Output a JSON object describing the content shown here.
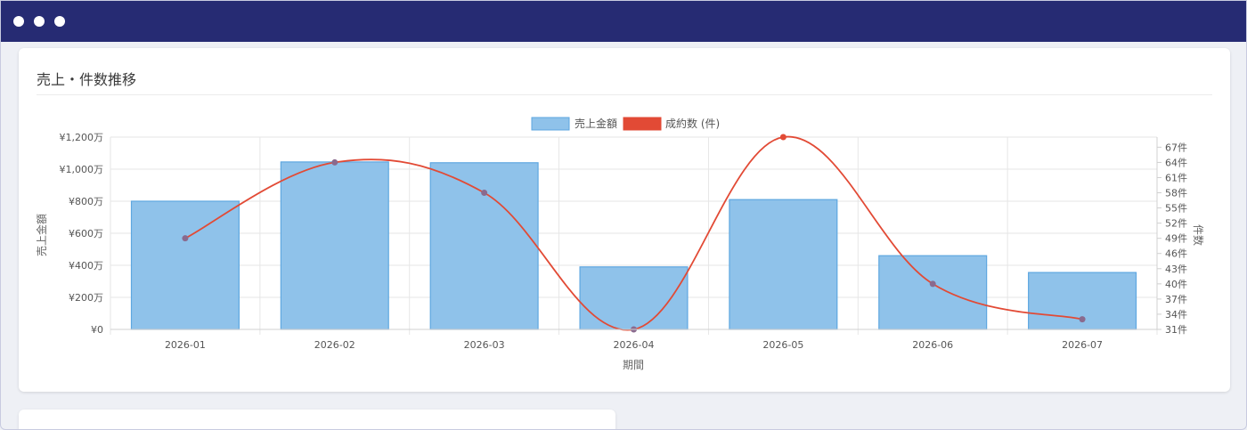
{
  "window": {
    "controls": [
      "dot",
      "dot",
      "dot"
    ]
  },
  "card": {
    "title": "売上・件数推移"
  },
  "colors": {
    "titlebar": "#262b73",
    "bar_fill": "#8fc2ea",
    "bar_stroke": "#5ea7e0",
    "line": "#e24a35",
    "line_point_low": "#8a6a8e",
    "grid": "#e6e6e6"
  },
  "chart_data": {
    "type": "bar",
    "categories": [
      "2026-01",
      "2026-02",
      "2026-03",
      "2026-04",
      "2026-05",
      "2026-06",
      "2026-07"
    ],
    "series": [
      {
        "name": "売上金額",
        "type": "bar",
        "axis": "left",
        "values": [
          800,
          1045,
          1040,
          390,
          810,
          460,
          355
        ]
      },
      {
        "name": "成約数 (件)",
        "type": "line",
        "axis": "right",
        "values": [
          49,
          64,
          58,
          31,
          69,
          40,
          33
        ]
      }
    ],
    "xlabel": "期間",
    "ylabel_left": "売上金額",
    "ylabel_right": "件数",
    "y_left_range": [
      0,
      1200
    ],
    "y_left_ticks": [
      "¥0",
      "¥200万",
      "¥400万",
      "¥600万",
      "¥800万",
      "¥1,000万",
      "¥1,200万"
    ],
    "y_right_range": [
      31,
      69
    ],
    "y_right_ticks": [
      "31件",
      "34件",
      "37件",
      "40件",
      "43件",
      "46件",
      "49件",
      "52件",
      "55件",
      "58件",
      "61件",
      "64件",
      "67件"
    ],
    "legend_position": "top-center",
    "grid": true
  }
}
